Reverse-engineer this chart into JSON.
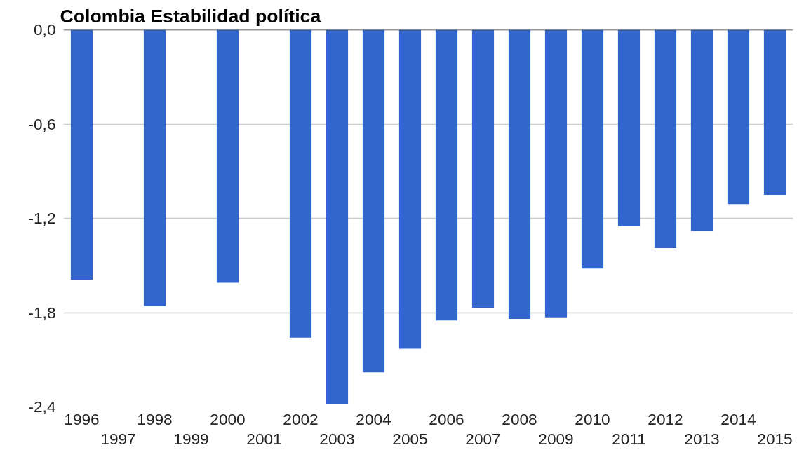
{
  "chart_data": {
    "type": "bar",
    "title": "Colombia Estabilidad política",
    "categories": [
      "1996",
      "1997",
      "1998",
      "1999",
      "2000",
      "2001",
      "2002",
      "2003",
      "2004",
      "2005",
      "2006",
      "2007",
      "2008",
      "2009",
      "2010",
      "2011",
      "2012",
      "2013",
      "2014",
      "2015"
    ],
    "values": [
      -1.59,
      null,
      -1.76,
      null,
      -1.61,
      null,
      -1.96,
      -2.38,
      -2.18,
      -2.03,
      -1.85,
      -1.77,
      -1.84,
      -1.83,
      -1.52,
      -1.25,
      -1.39,
      -1.28,
      -1.11,
      -1.05
    ],
    "color": "#3366cc",
    "ylim": [
      -2.4,
      0
    ],
    "yticks": [
      {
        "value": 0,
        "label": "0,0"
      },
      {
        "value": -0.6,
        "label": "-0,6"
      },
      {
        "value": -1.2,
        "label": "-1,2"
      },
      {
        "value": -1.8,
        "label": "-1,8"
      },
      {
        "value": -2.4,
        "label": "-2,4"
      }
    ],
    "grid": "y"
  }
}
